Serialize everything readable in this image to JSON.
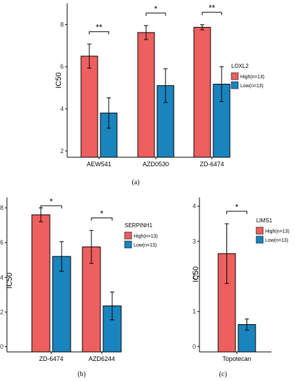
{
  "colors": {
    "high": "#EE5F5F",
    "low": "#1A84BE",
    "axis": "#000000"
  },
  "panel_labels": [
    "(a)",
    "(b)",
    "(c)"
  ],
  "chart_data": [
    {
      "type": "bar",
      "panel": "(a)",
      "xlabel": "",
      "ylabel": "IC50",
      "ylim": [
        1.7,
        9.0
      ],
      "yticks": [
        2,
        4,
        6,
        8
      ],
      "categories": [
        "AEW541",
        "AZD0530",
        "ZD-6474"
      ],
      "legend_title": "LOXL2",
      "legend_position": "right",
      "series": [
        {
          "name": "High(n=13)",
          "color_key": "high",
          "values": [
            6.5,
            7.62,
            7.87
          ],
          "errors": [
            0.57,
            0.33,
            0.12
          ]
        },
        {
          "name": "Low(n=13)",
          "color_key": "low",
          "values": [
            3.8,
            5.1,
            5.17
          ],
          "errors": [
            0.72,
            0.8,
            0.83
          ]
        }
      ],
      "significance": [
        "**",
        "*",
        "**"
      ]
    },
    {
      "type": "bar",
      "panel": "(b)",
      "xlabel": "",
      "ylabel": "IC50",
      "ylim": [
        -0.3,
        8.6
      ],
      "yticks": [
        0,
        2,
        4,
        6,
        8
      ],
      "categories": [
        "ZD-6474",
        "AZD6244"
      ],
      "legend_title": "SERPINH1",
      "legend_position": "right",
      "series": [
        {
          "name": "High(n=13)",
          "color_key": "high",
          "values": [
            7.6,
            5.75
          ],
          "errors": [
            0.4,
            0.95
          ]
        },
        {
          "name": "Low(n=13)",
          "color_key": "low",
          "values": [
            5.2,
            2.35
          ],
          "errors": [
            0.85,
            0.8
          ]
        }
      ],
      "significance": [
        "*",
        "*"
      ]
    },
    {
      "type": "bar",
      "panel": "(c)",
      "xlabel": "",
      "ylabel": "IC50",
      "ylim": [
        -0.15,
        4.25
      ],
      "yticks": [
        0,
        1,
        2,
        3,
        4
      ],
      "categories": [
        "Topotecan"
      ],
      "legend_title": "LIMS1",
      "legend_position": "right",
      "series": [
        {
          "name": "High(n=13)",
          "color_key": "high",
          "values": [
            2.65
          ],
          "errors": [
            0.85
          ]
        },
        {
          "name": "Low(n=13)",
          "color_key": "low",
          "values": [
            0.63
          ],
          "errors": [
            0.16
          ]
        }
      ],
      "significance": [
        "*"
      ]
    }
  ]
}
